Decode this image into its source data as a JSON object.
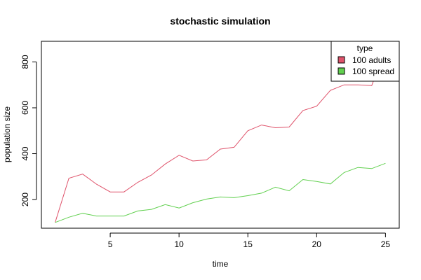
{
  "chart_data": {
    "type": "line",
    "title": "stochastic simulation",
    "xlabel": "time",
    "ylabel": "population size",
    "xlim": [
      0,
      26
    ],
    "ylim": [
      75,
      890
    ],
    "x_ticks": [
      5,
      10,
      15,
      20,
      25
    ],
    "y_ticks": [
      200,
      400,
      600,
      800
    ],
    "x_tick_labels": [
      "5",
      "10",
      "15",
      "20",
      "25"
    ],
    "y_tick_labels": [
      "200",
      "400",
      "600",
      "800"
    ],
    "grid": false,
    "legend": {
      "title": "type",
      "position": "top-right"
    },
    "x": [
      1,
      2,
      3,
      4,
      5,
      6,
      7,
      8,
      9,
      10,
      11,
      12,
      13,
      14,
      15,
      16,
      17,
      18,
      19,
      20,
      21,
      22,
      23,
      24,
      25
    ],
    "series": [
      {
        "name": "100 adults",
        "color": "#df536b",
        "values": [
          100,
          293,
          311,
          267,
          233,
          233,
          275,
          307,
          355,
          393,
          368,
          373,
          420,
          428,
          500,
          525,
          513,
          516,
          588,
          607,
          676,
          700,
          700,
          697,
          860
        ]
      },
      {
        "name": "100 spread",
        "color": "#61d04f",
        "values": [
          100,
          123,
          140,
          128,
          128,
          128,
          150,
          157,
          178,
          163,
          186,
          202,
          211,
          208,
          217,
          228,
          254,
          238,
          287,
          279,
          268,
          318,
          340,
          335,
          358
        ]
      }
    ]
  }
}
